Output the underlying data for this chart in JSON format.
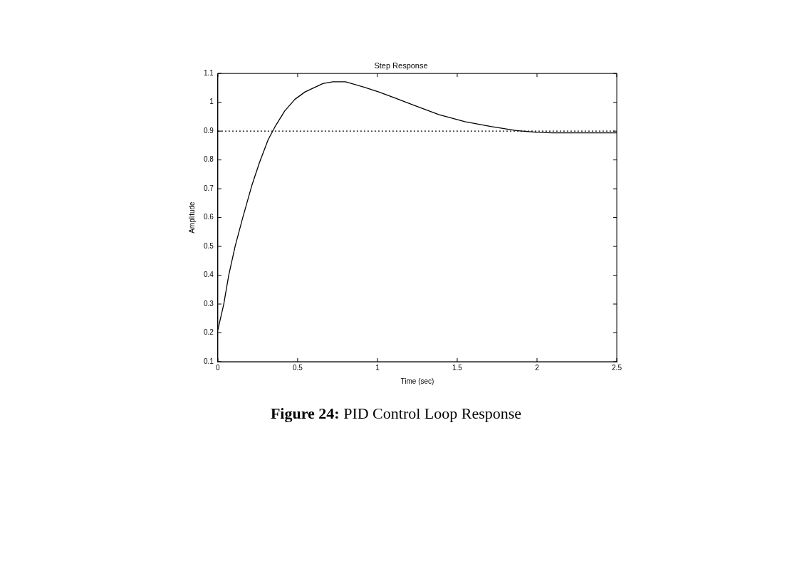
{
  "chart_data": {
    "type": "line",
    "title": "Step Response",
    "xlabel": "Time (sec)",
    "ylabel": "Amplitude",
    "annotations": [
      "Figure 24: PID Control Loop Response"
    ],
    "xlim": [
      0,
      2.5
    ],
    "xticks": [
      0,
      0.5,
      1,
      1.5,
      2,
      2.5
    ],
    "ylim": [
      0.1,
      1.1
    ],
    "yticks": [
      0.1,
      0.2,
      0.3,
      0.4,
      0.5,
      0.6,
      0.7,
      0.8,
      0.9,
      1,
      1.1
    ],
    "grid": false,
    "legend": false,
    "marker": "none",
    "line_style": "solid",
    "ref_lines": [
      {
        "axis": "y",
        "value": 0.9,
        "color": "#000000",
        "line_style": "dotted"
      }
    ],
    "series": [
      {
        "color": "#000000",
        "x": [
          0,
          0.037,
          0.068,
          0.108,
          0.156,
          0.212,
          0.26,
          0.315,
          0.363,
          0.419,
          0.482,
          0.546,
          0.658,
          0.72,
          0.8,
          0.912,
          1.008,
          1.104,
          1.226,
          1.387,
          1.548,
          1.71,
          1.87,
          2.0,
          2.097,
          2.5
        ],
        "values": [
          0.21,
          0.3,
          0.4,
          0.5,
          0.6,
          0.71,
          0.79,
          0.87,
          0.92,
          0.97,
          1.01,
          1.036,
          1.065,
          1.071,
          1.071,
          1.053,
          1.036,
          1.016,
          0.99,
          0.957,
          0.933,
          0.916,
          0.902,
          0.896,
          0.894,
          0.894
        ]
      }
    ]
  }
}
